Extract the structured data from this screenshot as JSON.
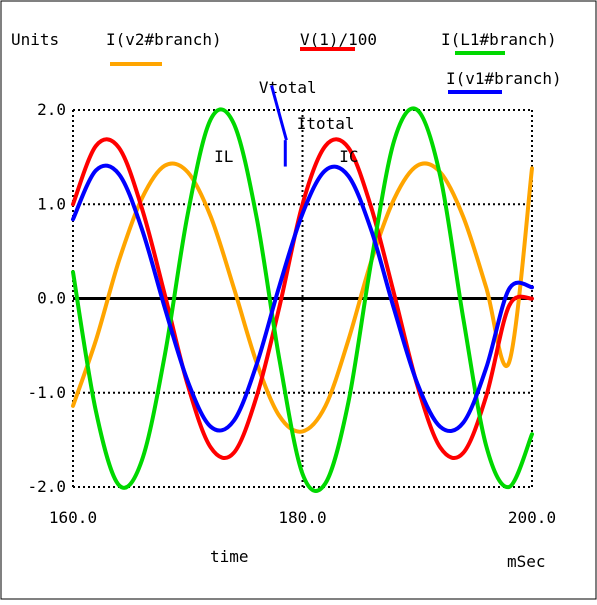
{
  "chart_data": {
    "type": "line",
    "title": "",
    "xlabel": "time",
    "x_unit": "mSec",
    "ylabel": "Units",
    "xlim": [
      160.0,
      200.0
    ],
    "ylim": [
      -2.0,
      2.0
    ],
    "x_ticks": [
      "160.0",
      "180.0",
      "200.0"
    ],
    "y_ticks": [
      "2.0",
      "1.0",
      "0.0",
      "-1.0",
      "-2.0"
    ],
    "grid": "dotted",
    "legend_placement": "top",
    "series": [
      {
        "name": "I(v2#branch)",
        "color": "#ffa500",
        "x": [
          160.0,
          162.0,
          164.0,
          166.0,
          168.0,
          170.0,
          172.0,
          174.0,
          176.0,
          178.0,
          180.0,
          182.0,
          184.0,
          186.0,
          188.0,
          190.0,
          192.0,
          194.0,
          196.0,
          198.0,
          200.0
        ],
        "y": [
          -1.14,
          -0.44,
          0.4,
          1.06,
          1.41,
          1.34,
          0.87,
          0.12,
          -0.68,
          -1.25,
          -1.41,
          -1.14,
          -0.44,
          0.4,
          1.06,
          1.41,
          1.34,
          0.87,
          0.12,
          -0.68,
          1.38
        ]
      },
      {
        "name": "V(1)/100",
        "color": "#ff0000",
        "x": [
          160.0,
          162.0,
          164.0,
          166.0,
          168.0,
          170.0,
          172.0,
          174.0,
          176.0,
          178.0,
          180.0,
          182.0,
          184.0,
          186.0,
          188.0,
          190.0,
          192.0,
          194.0,
          196.0,
          198.0,
          200.0
        ],
        "y": [
          1.0,
          1.62,
          1.6,
          0.96,
          0.04,
          -0.92,
          -1.58,
          -1.64,
          -1.04,
          -0.08,
          1.0,
          1.62,
          1.6,
          0.96,
          0.04,
          -0.92,
          -1.58,
          -1.64,
          -1.04,
          -0.08,
          0.0
        ]
      },
      {
        "name": "I(L1#branch)",
        "color": "#00d800",
        "x": [
          160.0,
          162.0,
          164.0,
          166.0,
          168.0,
          170.0,
          172.0,
          174.0,
          176.0,
          178.0,
          180.0,
          182.0,
          184.0,
          186.0,
          188.0,
          190.0,
          192.0,
          194.0,
          196.0,
          198.0,
          200.0
        ],
        "y": [
          0.28,
          -1.2,
          -1.98,
          -1.72,
          -0.6,
          0.9,
          1.9,
          1.86,
          0.86,
          -0.66,
          -1.86,
          -1.96,
          -1.1,
          0.4,
          1.68,
          2.0,
          1.3,
          -0.2,
          -1.56,
          -2.0,
          -1.44
        ]
      },
      {
        "name": "I(v1#branch)",
        "color": "#0000ff",
        "x": [
          160.0,
          162.0,
          164.0,
          166.0,
          168.0,
          170.0,
          172.0,
          174.0,
          176.0,
          178.0,
          180.0,
          182.0,
          184.0,
          186.0,
          188.0,
          190.0,
          192.0,
          194.0,
          196.0,
          198.0,
          200.0
        ],
        "y": [
          0.84,
          1.36,
          1.32,
          0.74,
          -0.1,
          -0.88,
          -1.36,
          -1.3,
          -0.7,
          0.14,
          0.9,
          1.36,
          1.3,
          0.72,
          -0.12,
          -0.9,
          -1.36,
          -1.32,
          -0.74,
          0.1,
          0.12
        ]
      }
    ],
    "annotations": [
      {
        "text": "Vtotal",
        "x": 176.2,
        "y": 2.18
      },
      {
        "text": "Itotal",
        "x": 179.5,
        "y": 1.8
      },
      {
        "text": "IL",
        "x": 172.3,
        "y": 1.45
      },
      {
        "text": "IC",
        "x": 183.2,
        "y": 1.45
      }
    ]
  }
}
